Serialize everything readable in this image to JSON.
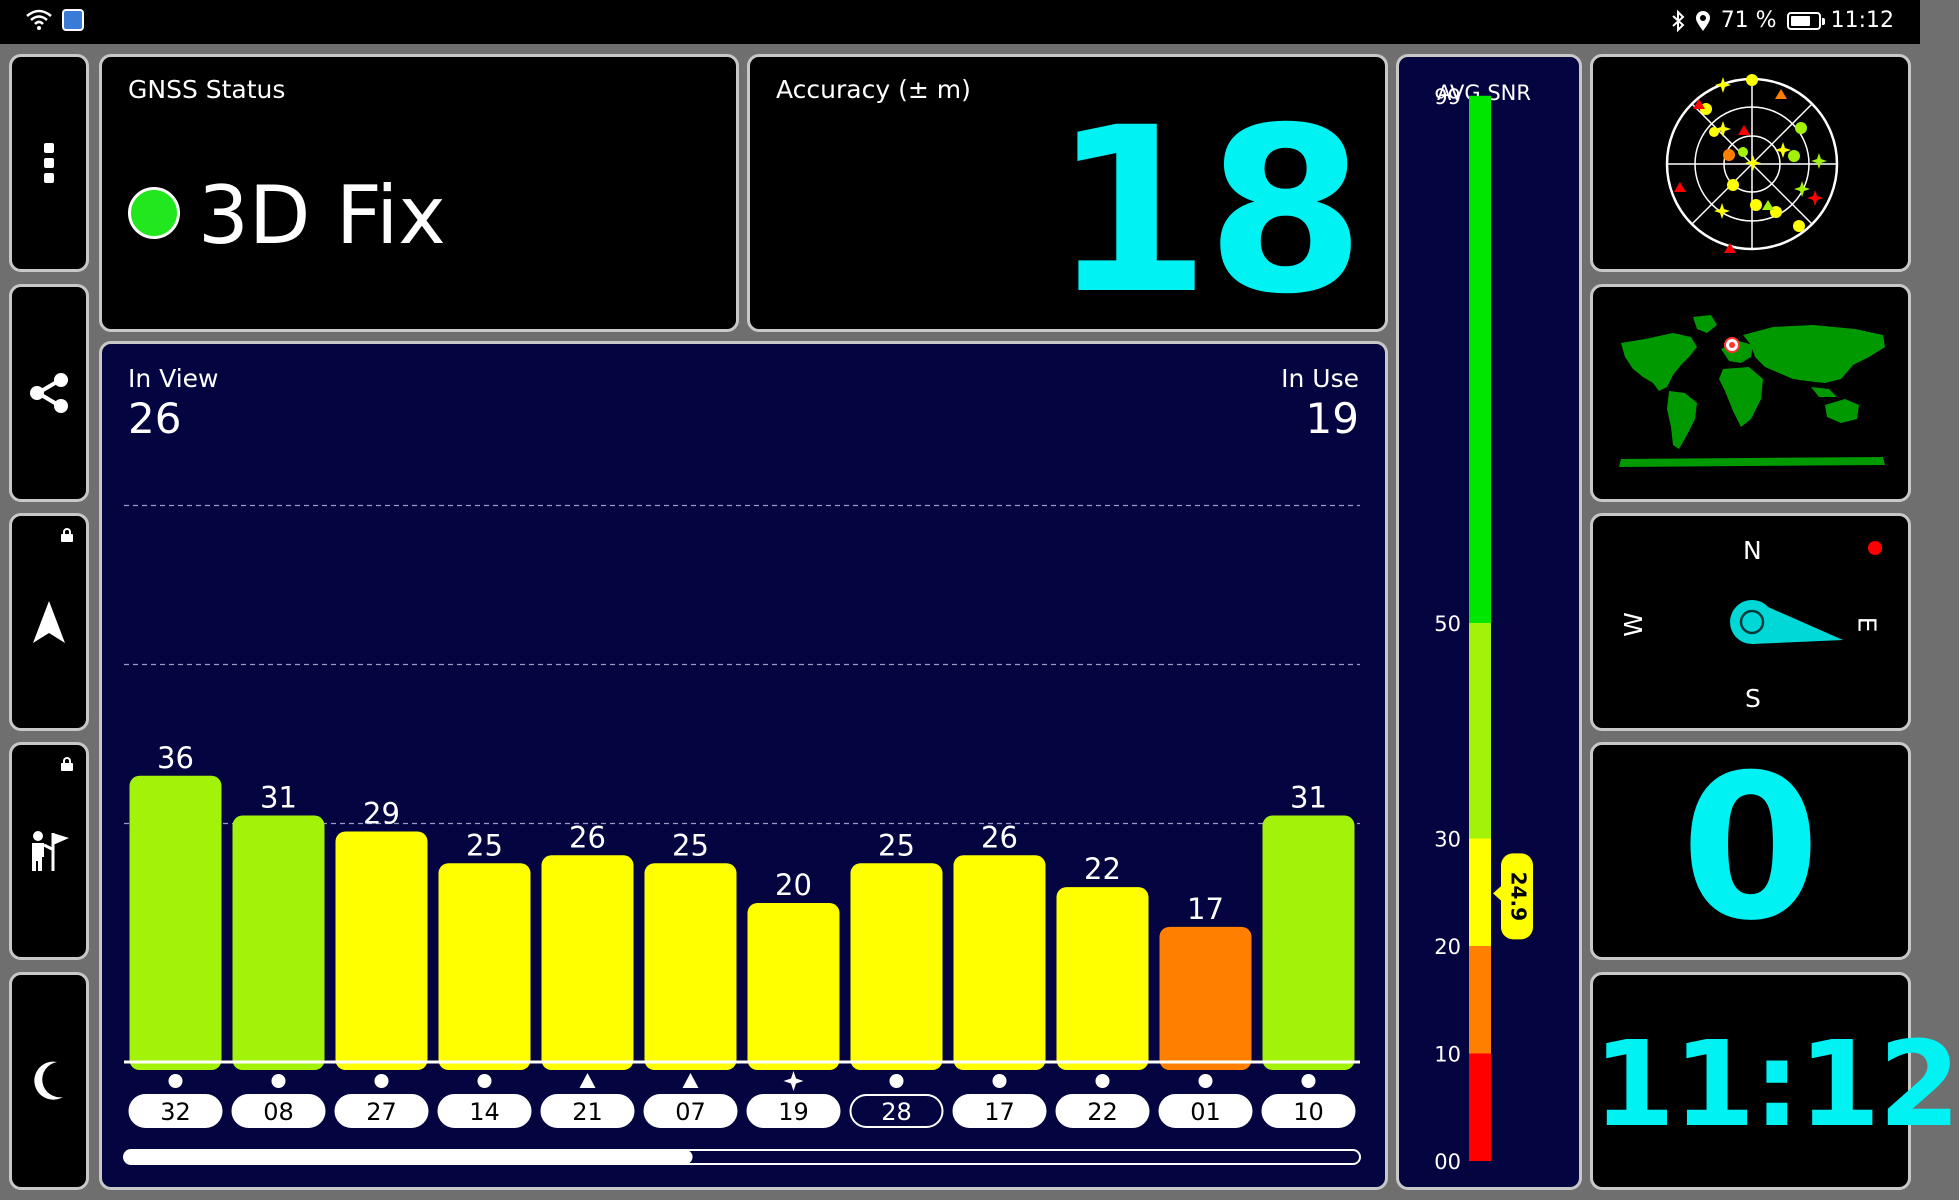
{
  "status_bar": {
    "battery_percent": "71 %",
    "battery_level": 0.71,
    "time": "11:12",
    "icons": [
      "wifi-icon",
      "app-icon",
      "bluetooth-icon",
      "location-icon",
      "battery-icon"
    ]
  },
  "side_menu": [
    {
      "icon": "more-vertical-icon",
      "locked": false
    },
    {
      "icon": "share-icon",
      "locked": false
    },
    {
      "icon": "navigation-arrow-icon",
      "locked": true
    },
    {
      "icon": "hiker-flag-icon",
      "locked": true
    },
    {
      "icon": "moon-icon",
      "locked": false
    }
  ],
  "gnss_status": {
    "title": "GNSS Status",
    "value": "3D Fix",
    "indicator_color": "#22e61e"
  },
  "accuracy": {
    "title": "Accuracy (± m)",
    "value": "18"
  },
  "satellites": {
    "in_view_label": "In View",
    "in_view": "26",
    "in_use_label": "In Use",
    "in_use": "19",
    "scroll_position": 0.46
  },
  "chart_data": {
    "type": "bar",
    "categories": [
      "32",
      "08",
      "27",
      "14",
      "21",
      "07",
      "19",
      "28",
      "17",
      "22",
      "01",
      "10"
    ],
    "values": [
      36,
      31,
      29,
      25,
      26,
      25,
      20,
      25,
      26,
      22,
      17,
      31
    ],
    "constellation_symbols": [
      "circle",
      "circle",
      "circle",
      "circle",
      "triangle",
      "triangle",
      "star",
      "circle",
      "circle",
      "circle",
      "circle",
      "circle"
    ],
    "highlighted_category": "28",
    "ylim": [
      0,
      99
    ],
    "gridlines": [
      30,
      50,
      70
    ],
    "colors": {
      "ge30": "#a3f20a",
      "ge20": "#ffff00",
      "ge10": "#ff8000",
      "lt10": "#ff0000"
    }
  },
  "snr_scale": {
    "title": "AVG SNR",
    "ticks": [
      "99",
      "50",
      "30",
      "20",
      "10",
      "00"
    ],
    "average": "24.9",
    "average_value": 24.9,
    "bands": [
      {
        "from": 0,
        "to": 10,
        "color": "#ff0000"
      },
      {
        "from": 10,
        "to": 20,
        "color": "#ff8000"
      },
      {
        "from": 20,
        "to": 30,
        "color": "#ffff00"
      },
      {
        "from": 30,
        "to": 50,
        "color": "#a3f20a"
      },
      {
        "from": 50,
        "to": 99,
        "color": "#00e600"
      }
    ]
  },
  "compass": {
    "north": "N",
    "south": "S",
    "east": "E",
    "west": "W"
  },
  "speed": {
    "value": "0"
  },
  "clock": {
    "value": "11:12"
  }
}
